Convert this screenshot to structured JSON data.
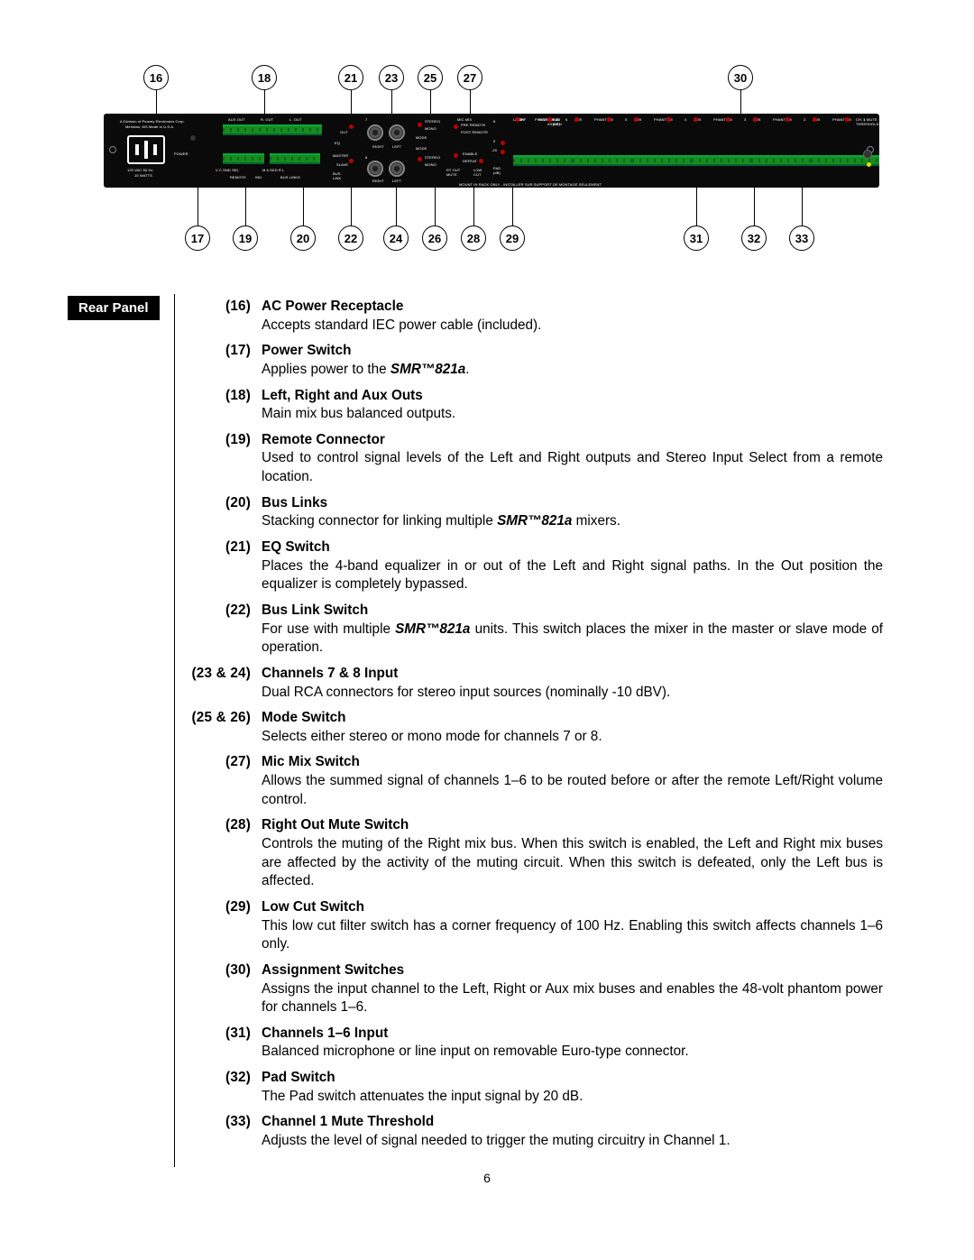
{
  "page_number": "6",
  "section_label": "Rear Panel",
  "product_model": "SMR™821a",
  "diagram": {
    "panel_color": "#0a0a0a",
    "led_red": "#b00000",
    "led_yellow": "#e2e200",
    "terminal_green": "#1a8a1a",
    "top_callouts": [
      "16",
      "18",
      "21",
      "23",
      "25",
      "27",
      "30"
    ],
    "bottom_callouts": [
      "17",
      "19",
      "20",
      "22",
      "24",
      "26",
      "28",
      "29",
      "31",
      "32",
      "33"
    ],
    "panel_text": {
      "mfr1": "A Division of Peavey Electronics Corp.",
      "mfr2": "Meridian, MS     Made in U.S.A.",
      "power": "POWER",
      "vac": "120 VAC  60 Hz",
      "watts": "15 WATTS",
      "remote": "REMOTE",
      "bus_links": "BUS LINKS",
      "aux_out": "AUX OUT",
      "r_out": "R. OUT",
      "l_out": "L. OUT",
      "eq": "EQ",
      "out": "OUT",
      "master": "MASTER",
      "slave": "SLAVE",
      "bus_link": "BUS\nLINK",
      "right": "RIGHT",
      "left": "LEFT",
      "stereo": "STEREO",
      "mono": "MONO",
      "mode": "MODE",
      "mic_mix": "MIC MIX",
      "pre_remote": "PRE REMOTE",
      "post_remote": "POST REMOTE",
      "enable": "ENABLE",
      "defeat": "DEFEAT",
      "rt_out_mute": "RT OUT\nMUTE",
      "low_cut": "LOW\nCUT",
      "pad_db": "PAD\n(dB)",
      "zero": "0",
      "minus20": "-20",
      "aux": "AUX",
      "phantom": "PHANTOM",
      "on": "ON",
      "off": "OFF",
      "bus_assign": "BUS\nASSIGN",
      "ch1_mute": "CH. 1 MUTE\nTHRESHOLD",
      "rack_note": "MOUNT IN RACK ONLY - INSTALLER SUR SUPPORT DE MONTAGE SEULEMENT",
      "vc_snd": "V  C  SND SEL",
      "maskd": "M  A  SKD  R   L",
      "ind": "IND"
    }
  },
  "items": [
    {
      "num": "(16)",
      "title": "AC Power Receptacle",
      "desc": "Accepts standard IEC power cable (included)."
    },
    {
      "num": "(17)",
      "title": "Power Switch",
      "desc_html": "Applies power to the <em>SMR™821a</em>."
    },
    {
      "num": "(18)",
      "title": "Left, Right and Aux Outs",
      "desc": "Main mix bus balanced outputs."
    },
    {
      "num": "(19)",
      "title": "Remote Connector",
      "desc": "Used to control signal levels of the Left and Right outputs and Stereo Input Select from a remote location."
    },
    {
      "num": "(20)",
      "title": "Bus Links",
      "desc_html": "Stacking connector for linking multiple <em>SMR™821a</em> mixers."
    },
    {
      "num": "(21)",
      "title": "EQ Switch",
      "desc": "Places the 4-band equalizer in or out of the Left and Right signal paths. In the Out position the equalizer is completely bypassed."
    },
    {
      "num": "(22)",
      "title": "Bus Link Switch",
      "desc_html": "For use with multiple <em>SMR™821a</em> units. This switch places the mixer in the master or slave mode of operation."
    },
    {
      "num": "(23 & 24)",
      "title": "Channels 7 & 8 Input",
      "desc": "Dual RCA connectors for stereo input sources (nominally -10 dBV)."
    },
    {
      "num": "(25 & 26)",
      "title": "Mode Switch",
      "desc": "Selects either stereo or mono mode for channels 7 or 8."
    },
    {
      "num": "(27)",
      "title": "Mic Mix Switch",
      "desc": "Allows the summed signal of channels 1–6 to be routed before or after the remote Left/Right volume control."
    },
    {
      "num": "(28)",
      "title": "Right Out Mute Switch",
      "desc": "Controls the muting of the Right mix bus. When this switch is enabled, the Left and Right mix buses are affected by the activity of the muting circuit. When this switch is defeated, only the Left bus is affected."
    },
    {
      "num": "(29)",
      "title": "Low Cut Switch",
      "desc": "This low cut filter switch has a corner frequency of 100 Hz. Enabling this switch affects channels 1–6 only."
    },
    {
      "num": "(30)",
      "title": "Assignment Switches",
      "desc": "Assigns the input channel to the Left, Right or Aux mix buses and enables the 48-volt phantom power for channels 1–6."
    },
    {
      "num": "(31)",
      "title": "Channels 1–6 Input",
      "desc": "Balanced microphone or line input on removable Euro-type connector."
    },
    {
      "num": "(32)",
      "title": "Pad Switch",
      "desc": "The Pad switch attenuates the input signal by 20 dB."
    },
    {
      "num": "(33)",
      "title": "Channel 1 Mute Threshold",
      "desc": "Adjusts the level of signal needed to trigger the muting circuitry in Channel 1."
    }
  ]
}
